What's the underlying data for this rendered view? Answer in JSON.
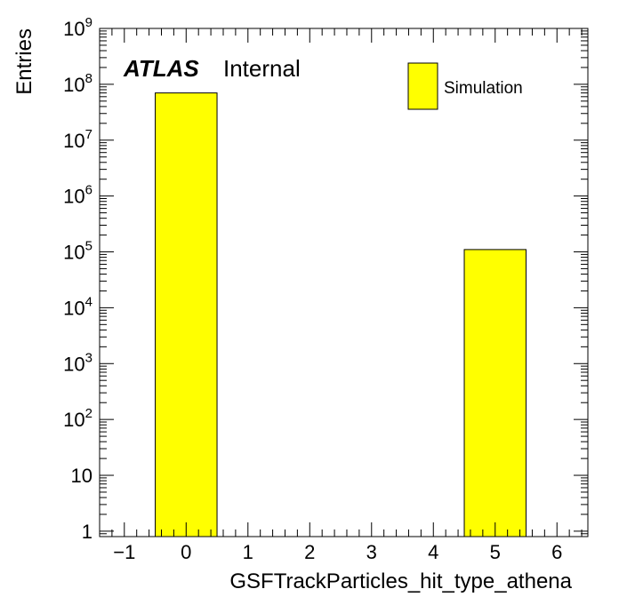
{
  "chart_data": {
    "type": "bar",
    "xlabel": "GSFTrackParticles_hit_type_athena",
    "ylabel": "Entries",
    "xlim": [
      -1.4,
      6.5
    ],
    "ylim": [
      0.8,
      1000000000
    ],
    "yscale": "log",
    "x_ticks": [
      -1,
      0,
      1,
      2,
      3,
      4,
      5,
      6
    ],
    "y_ticks": [
      {
        "value": 1,
        "base": "1",
        "exp": ""
      },
      {
        "value": 10,
        "base": "10",
        "exp": ""
      },
      {
        "value": 100,
        "base": "10",
        "exp": "2"
      },
      {
        "value": 1000,
        "base": "10",
        "exp": "3"
      },
      {
        "value": 10000,
        "base": "10",
        "exp": "4"
      },
      {
        "value": 100000,
        "base": "10",
        "exp": "5"
      },
      {
        "value": 1000000,
        "base": "10",
        "exp": "6"
      },
      {
        "value": 10000000,
        "base": "10",
        "exp": "7"
      },
      {
        "value": 100000000,
        "base": "10",
        "exp": "8"
      },
      {
        "value": 1000000000,
        "base": "10",
        "exp": "9"
      }
    ],
    "series": [
      {
        "name": "Simulation",
        "color": "#ffff00",
        "bins": [
          {
            "x_low": -0.5,
            "x_high": 0.5,
            "value": 70000000
          },
          {
            "x_low": 4.5,
            "x_high": 5.5,
            "value": 110000
          }
        ]
      }
    ],
    "legend": {
      "position": "top-right"
    },
    "grid": false,
    "label_atlas": "ATLAS",
    "label_internal": "Internal"
  }
}
